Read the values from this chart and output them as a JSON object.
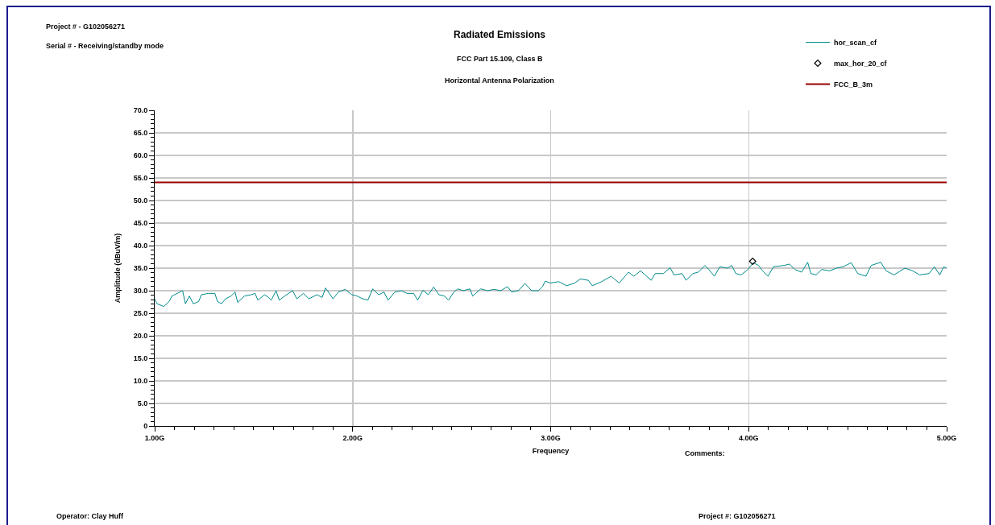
{
  "chart_data": {
    "type": "line",
    "title": "Radiated Emissions",
    "subtitle": "FCC Part 15.109, Class B\nHorizontal Antenna Polarization",
    "xlabel": "Frequency",
    "ylabel": "Amplitude (dBuV/m)",
    "annotations": [
      "Project # - G102056271",
      "Serial # - Receiving/standby mode",
      "Comments:",
      "Operator: Clay Huff",
      "Project #: G102056271"
    ],
    "xlim": [
      1,
      5
    ],
    "xticks": [
      {
        "value": 1,
        "label": "1.00G"
      },
      {
        "value": 1.1,
        "label": null
      },
      {
        "value": 1.2,
        "label": null
      },
      {
        "value": 1.3,
        "label": null
      },
      {
        "value": 1.4,
        "label": null
      },
      {
        "value": 1.5,
        "label": null
      },
      {
        "value": 1.6,
        "label": null
      },
      {
        "value": 1.7,
        "label": null
      },
      {
        "value": 1.8,
        "label": null
      },
      {
        "value": 1.9,
        "label": null
      },
      {
        "value": 2,
        "label": "2.00G"
      },
      {
        "value": 2.1,
        "label": null
      },
      {
        "value": 2.2,
        "label": null
      },
      {
        "value": 2.3,
        "label": null
      },
      {
        "value": 2.4,
        "label": null
      },
      {
        "value": 2.5,
        "label": null
      },
      {
        "value": 2.6,
        "label": null
      },
      {
        "value": 2.7,
        "label": null
      },
      {
        "value": 2.8,
        "label": null
      },
      {
        "value": 2.9,
        "label": null
      },
      {
        "value": 3,
        "label": "3.00G"
      },
      {
        "value": 3.1,
        "label": null
      },
      {
        "value": 3.2,
        "label": null
      },
      {
        "value": 3.3,
        "label": null
      },
      {
        "value": 3.4,
        "label": null
      },
      {
        "value": 3.5,
        "label": null
      },
      {
        "value": 3.6,
        "label": null
      },
      {
        "value": 3.7,
        "label": null
      },
      {
        "value": 3.8,
        "label": null
      },
      {
        "value": 3.9,
        "label": null
      },
      {
        "value": 4,
        "label": "4.00G"
      },
      {
        "value": 4.1,
        "label": null
      },
      {
        "value": 4.2,
        "label": null
      },
      {
        "value": 4.3,
        "label": null
      },
      {
        "value": 4.4,
        "label": null
      },
      {
        "value": 4.5,
        "label": null
      },
      {
        "value": 4.6,
        "label": null
      },
      {
        "value": 4.7,
        "label": null
      },
      {
        "value": 4.8,
        "label": null
      },
      {
        "value": 4.9,
        "label": null
      },
      {
        "value": 5,
        "label": "5.00G"
      }
    ],
    "ylim": [
      0,
      70
    ],
    "yticks": [
      0,
      {
        "value": 1,
        "label": null
      },
      {
        "value": 2,
        "label": null
      },
      {
        "value": 3,
        "label": null
      },
      {
        "value": 4,
        "label": null
      },
      {
        "value": 5,
        "label": "5.0"
      },
      {
        "value": 6,
        "label": null
      },
      {
        "value": 7,
        "label": null
      },
      {
        "value": 8,
        "label": null
      },
      {
        "value": 9,
        "label": null
      },
      {
        "value": 10,
        "label": "10.0"
      },
      {
        "value": 11,
        "label": null
      },
      {
        "value": 12,
        "label": null
      },
      {
        "value": 13,
        "label": null
      },
      {
        "value": 14,
        "label": null
      },
      {
        "value": 15,
        "label": "15.0"
      },
      {
        "value": 16,
        "label": null
      },
      {
        "value": 17,
        "label": null
      },
      {
        "value": 18,
        "label": null
      },
      {
        "value": 19,
        "label": null
      },
      {
        "value": 20,
        "label": "20.0"
      },
      {
        "value": 21,
        "label": null
      },
      {
        "value": 22,
        "label": null
      },
      {
        "value": 23,
        "label": null
      },
      {
        "value": 24,
        "label": null
      },
      {
        "value": 25,
        "label": "25.0"
      },
      {
        "value": 26,
        "label": null
      },
      {
        "value": 27,
        "label": null
      },
      {
        "value": 28,
        "label": null
      },
      {
        "value": 29,
        "label": null
      },
      {
        "value": 30,
        "label": "30.0"
      },
      {
        "value": 31,
        "label": null
      },
      {
        "value": 32,
        "label": null
      },
      {
        "value": 33,
        "label": null
      },
      {
        "value": 34,
        "label": null
      },
      {
        "value": 35,
        "label": "35.0"
      },
      {
        "value": 36,
        "label": null
      },
      {
        "value": 37,
        "label": null
      },
      {
        "value": 38,
        "label": null
      },
      {
        "value": 39,
        "label": null
      },
      {
        "value": 40,
        "label": "40.0"
      },
      {
        "value": 41,
        "label": null
      },
      {
        "value": 42,
        "label": null
      },
      {
        "value": 43,
        "label": null
      },
      {
        "value": 44,
        "label": null
      },
      {
        "value": 45,
        "label": "45.0"
      },
      {
        "value": 46,
        "label": null
      },
      {
        "value": 47,
        "label": null
      },
      {
        "value": 48,
        "label": null
      },
      {
        "value": 49,
        "label": null
      },
      {
        "value": 50,
        "label": "50.0"
      },
      {
        "value": 51,
        "label": null
      },
      {
        "value": 52,
        "label": null
      },
      {
        "value": 53,
        "label": null
      },
      {
        "value": 54,
        "label": null
      },
      {
        "value": 55,
        "label": "55.0"
      },
      {
        "value": 56,
        "label": null
      },
      {
        "value": 57,
        "label": null
      },
      {
        "value": 58,
        "label": null
      },
      {
        "value": 59,
        "label": null
      },
      {
        "value": 60,
        "label": "60.0"
      },
      {
        "value": 61,
        "label": null
      },
      {
        "value": 62,
        "label": null
      },
      {
        "value": 63,
        "label": null
      },
      {
        "value": 64,
        "label": null
      },
      {
        "value": 65,
        "label": "65.0"
      },
      {
        "value": 66,
        "label": null
      },
      {
        "value": 67,
        "label": null
      },
      {
        "value": 68,
        "label": null
      },
      {
        "value": 69,
        "label": null
      },
      {
        "value": 70,
        "label": "70.0"
      }
    ],
    "grid": true,
    "legend": "top right",
    "series": [
      {
        "name": "hor_scan_cf",
        "color": "#008b8b",
        "line_style": "solid",
        "x": [
          1.0,
          1.012,
          1.046,
          1.073,
          1.087,
          1.114,
          1.141,
          1.155,
          1.175,
          1.195,
          1.222,
          1.236,
          1.27,
          1.304,
          1.317,
          1.338,
          1.358,
          1.385,
          1.406,
          1.419,
          1.453,
          1.487,
          1.507,
          1.521,
          1.555,
          1.575,
          1.589,
          1.613,
          1.629,
          1.656,
          1.697,
          1.718,
          1.751,
          1.779,
          1.819,
          1.846,
          1.863,
          1.887,
          1.901,
          1.928,
          1.962,
          1.996,
          2.023,
          2.05,
          2.077,
          2.101,
          2.131,
          2.158,
          2.179,
          2.213,
          2.247,
          2.274,
          2.308,
          2.328,
          2.355,
          2.382,
          2.409,
          2.436,
          2.464,
          2.484,
          2.511,
          2.531,
          2.558,
          2.592,
          2.606,
          2.647,
          2.681,
          2.714,
          2.748,
          2.782,
          2.803,
          2.837,
          2.87,
          2.904,
          2.938,
          2.959,
          2.972,
          3.0,
          3.041,
          3.081,
          3.122,
          3.149,
          3.19,
          3.21,
          3.257,
          3.305,
          3.346,
          3.393,
          3.42,
          3.454,
          3.508,
          3.528,
          3.569,
          3.603,
          3.623,
          3.664,
          3.684,
          3.718,
          3.745,
          3.779,
          3.799,
          3.827,
          3.854,
          3.894,
          3.915,
          3.935,
          3.962,
          3.996,
          4.023,
          4.05,
          4.07,
          4.098,
          4.125,
          4.179,
          4.206,
          4.233,
          4.267,
          4.298,
          4.314,
          4.341,
          4.369,
          4.409,
          4.443,
          4.477,
          4.518,
          4.551,
          4.592,
          4.619,
          4.667,
          4.694,
          4.734,
          4.789,
          4.829,
          4.863,
          4.911,
          4.938,
          4.965,
          4.985,
          5.0
        ],
        "values": [
          28.2,
          27.1,
          26.5,
          27.6,
          28.8,
          29.4,
          30.0,
          27.1,
          28.8,
          27.1,
          27.6,
          29.1,
          29.4,
          29.4,
          27.6,
          27.1,
          28.2,
          28.8,
          29.7,
          27.4,
          28.8,
          29.1,
          29.4,
          27.9,
          29.1,
          28.5,
          27.9,
          30.0,
          27.9,
          28.8,
          30.0,
          28.2,
          29.4,
          28.2,
          29.1,
          28.5,
          30.6,
          29.1,
          28.2,
          29.7,
          30.3,
          29.1,
          28.8,
          28.2,
          27.9,
          30.4,
          29.1,
          29.7,
          27.9,
          29.7,
          30.0,
          29.4,
          29.4,
          27.9,
          30.1,
          29.1,
          30.8,
          29.1,
          28.8,
          27.9,
          29.7,
          30.4,
          30.0,
          30.4,
          28.8,
          30.4,
          30.0,
          30.3,
          30.0,
          30.9,
          29.7,
          30.0,
          31.6,
          30.0,
          30.0,
          30.9,
          32.1,
          31.7,
          32.0,
          31.1,
          31.7,
          32.6,
          32.3,
          31.1,
          32.0,
          33.2,
          31.7,
          34.1,
          33.2,
          34.4,
          32.3,
          33.8,
          33.8,
          35.1,
          33.5,
          33.8,
          32.3,
          33.8,
          34.1,
          35.6,
          34.7,
          33.2,
          35.3,
          35.0,
          35.6,
          33.8,
          33.5,
          34.7,
          36.2,
          35.6,
          34.4,
          33.2,
          35.3,
          35.6,
          35.9,
          34.7,
          34.1,
          36.3,
          33.8,
          33.5,
          34.7,
          34.4,
          35.0,
          35.3,
          36.2,
          33.8,
          33.2,
          35.6,
          36.3,
          34.4,
          33.5,
          35.0,
          34.4,
          33.5,
          33.8,
          35.3,
          33.5,
          35.3,
          35.0
        ]
      },
      {
        "name": "max_hor_20_cf",
        "type": "scatter",
        "color": "#000000",
        "marker": "diamond",
        "x": [
          4.02
        ],
        "values": [
          36.5
        ]
      },
      {
        "name": "FCC_B_3m",
        "color": "#990000",
        "line_style": "solid",
        "x": [
          1,
          5
        ],
        "values": [
          54,
          54
        ]
      }
    ]
  }
}
